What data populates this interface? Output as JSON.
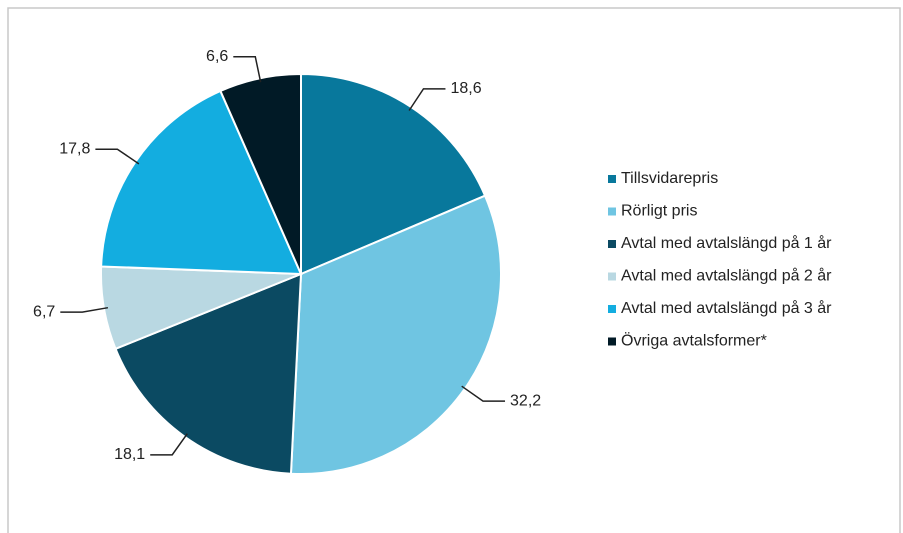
{
  "chart_data": {
    "type": "pie",
    "categories": [
      "Tillsvidarepris",
      "Rörligt pris",
      "Avtal med avtalslängd på 1 år",
      "Avtal med avtalslängd på 2 år",
      "Avtal med avtalslängd på 3 år",
      "Övriga avtalsformer*"
    ],
    "values": [
      18.6,
      32.2,
      18.1,
      6.7,
      17.8,
      6.6
    ],
    "value_labels": [
      "18,6",
      "32,2",
      "18,1",
      "6,7",
      "17,8",
      "6,6"
    ],
    "colors": [
      "#08789c",
      "#6fc5e2",
      "#0b4a62",
      "#b9d8e2",
      "#13ade0",
      "#011a26"
    ],
    "legend": "right"
  }
}
